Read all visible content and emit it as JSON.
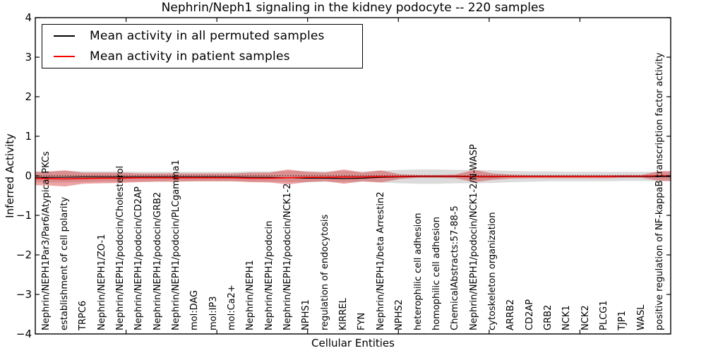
{
  "chart_data": {
    "type": "line",
    "title": "Nephrin/Neph1 signaling in the kidney podocyte -- 220 samples",
    "xlabel": "Cellular Entities",
    "ylabel": "Inferred Activity",
    "ylim": [
      -4,
      4
    ],
    "yticks": [
      {
        "value": 4,
        "label": "4"
      },
      {
        "value": 3,
        "label": "3"
      },
      {
        "value": 2,
        "label": "2"
      },
      {
        "value": 1,
        "label": "1"
      },
      {
        "value": 0,
        "label": "0"
      },
      {
        "value": -1,
        "label": "−1"
      },
      {
        "value": -2,
        "label": "−2"
      },
      {
        "value": -3,
        "label": "−3"
      },
      {
        "value": -4,
        "label": "−4"
      }
    ],
    "grid": false,
    "legend_position": "upper left",
    "zero_reference_line": 0,
    "categories": [
      "Nephrin/NEPH1Par3/Par6/Atypical PKCs",
      "establishment of cell polarity",
      "TRPC6",
      "Nephrin/NEPH1/ZO-1",
      "Nephrin/NEPH1/podocin/Cholesterol",
      "Nephrin/NEPH1/podocin/CD2AP",
      "Nephrin/NEPH1/podocin/GRB2",
      "Nephrin/NEPH1/podocin/PLCgamma1",
      "mol:DAG",
      "mol:IP3",
      "mol:Ca2+",
      "Nephrin/NEPH1",
      "Nephrin/NEPH1/podocin",
      "Nephrin/NEPH1/podocin/NCK1-2",
      "NPHS1",
      "regulation of endocytosis",
      "KIRREL",
      "FYN",
      "Nephrin/NEPH1/beta Arrestin2",
      "NPHS2",
      "heterophilic cell adhesion",
      "homophilic cell adhesion",
      "ChemicalAbstracts:57-88-5",
      "Nephrin/NEPH1/podocin/NCK1-2/N-WASP",
      "cytoskeleton organization",
      "ARRB2",
      "CD2AP",
      "GRB2",
      "NCK1",
      "NCK2",
      "PLCG1",
      "TJP1",
      "WASL",
      "positive regulation of NF-kappaB transcription factor activity"
    ],
    "series": [
      {
        "name": "Mean activity in all permuted samples",
        "color": "#000000",
        "values": [
          -0.04,
          -0.04,
          -0.03,
          -0.03,
          -0.03,
          -0.03,
          -0.03,
          -0.03,
          -0.03,
          -0.03,
          -0.03,
          -0.04,
          -0.04,
          -0.05,
          -0.06,
          -0.06,
          -0.07,
          -0.06,
          -0.04,
          -0.03,
          -0.02,
          -0.02,
          -0.02,
          -0.03,
          -0.03,
          -0.02,
          -0.02,
          -0.02,
          -0.02,
          -0.02,
          -0.02,
          -0.02,
          -0.02,
          -0.02
        ]
      },
      {
        "name": "Mean activity in patient samples",
        "color": "#ff0000",
        "values": [
          -0.07,
          -0.08,
          -0.07,
          -0.06,
          -0.06,
          -0.05,
          -0.05,
          -0.05,
          -0.05,
          -0.05,
          -0.05,
          -0.06,
          -0.06,
          -0.05,
          -0.04,
          -0.04,
          -0.03,
          -0.03,
          -0.02,
          -0.02,
          -0.01,
          -0.01,
          -0.01,
          -0.02,
          -0.02,
          -0.02,
          -0.02,
          -0.02,
          -0.02,
          -0.02,
          -0.02,
          -0.01,
          -0.01,
          0.0
        ]
      }
    ],
    "bands": [
      {
        "name": "permuted samples activity range",
        "color": "rgba(0,0,0,0.14)",
        "upper": [
          0.11,
          0.12,
          0.11,
          0.11,
          0.11,
          0.1,
          0.1,
          0.1,
          0.1,
          0.1,
          0.1,
          0.11,
          0.11,
          0.12,
          0.12,
          0.11,
          0.12,
          0.11,
          0.13,
          0.15,
          0.16,
          0.16,
          0.15,
          0.15,
          0.14,
          0.12,
          0.11,
          0.11,
          0.1,
          0.1,
          0.1,
          0.1,
          0.1,
          0.1
        ],
        "lower": [
          -0.16,
          -0.17,
          -0.16,
          -0.15,
          -0.15,
          -0.14,
          -0.14,
          -0.14,
          -0.14,
          -0.14,
          -0.14,
          -0.15,
          -0.15,
          -0.16,
          -0.16,
          -0.15,
          -0.16,
          -0.15,
          -0.17,
          -0.19,
          -0.2,
          -0.2,
          -0.19,
          -0.19,
          -0.18,
          -0.16,
          -0.15,
          -0.14,
          -0.14,
          -0.14,
          -0.14,
          -0.13,
          -0.13,
          -0.14
        ]
      },
      {
        "name": "patient samples activity range",
        "color": "rgba(214,39,40,0.42)",
        "upper": [
          0.1,
          0.14,
          0.08,
          0.08,
          0.08,
          0.06,
          0.06,
          0.06,
          0.06,
          0.06,
          0.06,
          0.08,
          0.08,
          0.16,
          0.1,
          0.08,
          0.16,
          0.08,
          0.14,
          0.04,
          0.02,
          0.02,
          0.03,
          0.15,
          0.06,
          0.03,
          0.02,
          0.02,
          0.02,
          0.02,
          0.02,
          0.02,
          0.02,
          0.12
        ],
        "lower": [
          -0.24,
          -0.27,
          -0.2,
          -0.19,
          -0.18,
          -0.16,
          -0.15,
          -0.15,
          -0.14,
          -0.14,
          -0.14,
          -0.16,
          -0.17,
          -0.22,
          -0.16,
          -0.14,
          -0.2,
          -0.14,
          -0.17,
          -0.08,
          -0.05,
          -0.05,
          -0.06,
          -0.16,
          -0.1,
          -0.07,
          -0.06,
          -0.06,
          -0.06,
          -0.06,
          -0.06,
          -0.05,
          -0.05,
          -0.13
        ]
      }
    ]
  }
}
